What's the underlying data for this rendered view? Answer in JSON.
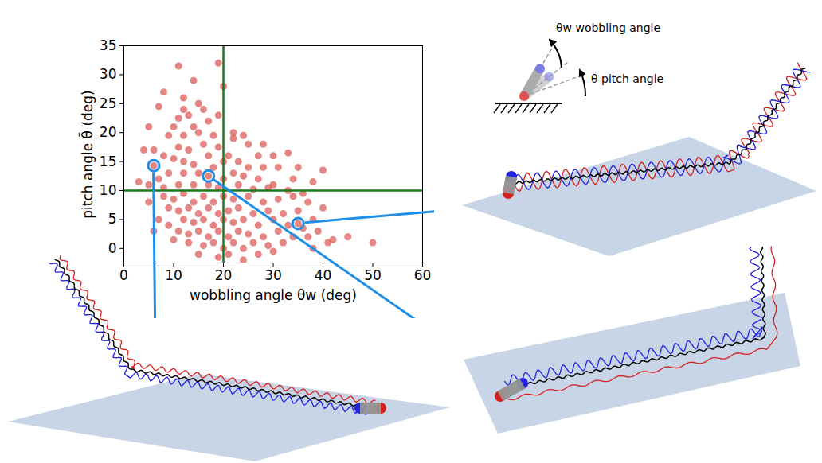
{
  "chart_data": {
    "type": "scatter",
    "x_label": "wobbling angle θw (deg)",
    "y_label": "pitch angle θ̄ (deg)",
    "color": "#d9534f",
    "xlim": [
      0,
      60
    ],
    "xticks": [
      0,
      10,
      20,
      30,
      40,
      50,
      60
    ],
    "ylim": [
      -2.5,
      35
    ],
    "yticks": [
      0,
      5,
      10,
      15,
      20,
      25,
      30,
      35
    ],
    "x": [
      8,
      11,
      14,
      19,
      20,
      12,
      15,
      12,
      16,
      11,
      13,
      17,
      19,
      14,
      10,
      5,
      7,
      9,
      12,
      15,
      18,
      22,
      24,
      22,
      25,
      28,
      30,
      33,
      27,
      21,
      19,
      16,
      13,
      11,
      8,
      6,
      4,
      10,
      12,
      14,
      17,
      18,
      20,
      23,
      25,
      28,
      31,
      35,
      40,
      38,
      34,
      30,
      27,
      24,
      22,
      20,
      15,
      12,
      9,
      7,
      5,
      3,
      8,
      11,
      14,
      17,
      19,
      23,
      26,
      29,
      33,
      36,
      6,
      17,
      35,
      5,
      8,
      10,
      12,
      14,
      16,
      18,
      20,
      22,
      25,
      28,
      31,
      34,
      37,
      40,
      9,
      11,
      13,
      15,
      17,
      19,
      21,
      23,
      26,
      29,
      32,
      35,
      38,
      12,
      14,
      16,
      18,
      20,
      22,
      24,
      27,
      30,
      33,
      36,
      39,
      42,
      45,
      50,
      11,
      13,
      15,
      17,
      19,
      21,
      23,
      25,
      28,
      31,
      34,
      37,
      41,
      13,
      16,
      18,
      20,
      22,
      24,
      26,
      29,
      32,
      38,
      15,
      19,
      21,
      24,
      27,
      30,
      7,
      9,
      6,
      10
    ],
    "y": [
      27,
      31.5,
      29,
      32,
      28,
      26,
      25,
      24,
      24,
      22.5,
      23,
      22,
      23,
      21,
      21,
      21,
      24.5,
      19.5,
      19.5,
      20,
      19.5,
      20,
      19.5,
      19,
      18,
      18,
      16,
      16.5,
      16,
      16,
      17.5,
      18,
      17,
      17.5,
      16,
      17,
      17,
      15.5,
      15,
      14.5,
      16,
      14,
      15,
      15,
      14,
      14,
      14,
      14,
      13.5,
      11.5,
      12,
      11,
      12,
      12.5,
      13,
      12,
      13,
      13,
      13,
      12,
      11,
      11.5,
      10.5,
      11,
      11,
      11,
      10.5,
      11,
      10.2,
      10.5,
      10,
      9.5,
      14.3,
      12.5,
      4.3,
      8,
      9,
      8.5,
      9.5,
      8,
      9,
      8,
      9,
      8.5,
      9,
      8,
      8.5,
      9,
      8,
      7,
      7,
      6.5,
      7,
      6,
      7,
      6,
      6.5,
      7,
      6,
      6.5,
      6,
      6.5,
      5,
      5,
      4.5,
      5,
      4,
      5,
      4.5,
      5,
      4,
      5,
      4,
      3.5,
      3,
      1.5,
      2,
      1,
      3,
      2.5,
      3,
      2,
      3,
      2,
      3,
      2.5,
      2,
      3,
      2,
      2,
      1,
      1,
      0.5,
      1,
      0,
      1,
      0,
      1,
      0.5,
      1,
      0,
      -1,
      -1.5,
      -1,
      -2,
      -1,
      -0.5,
      5,
      4,
      3,
      1.5
    ],
    "reference_lines": {
      "x": 20,
      "y": 10,
      "color": "#1a7a1a"
    },
    "highlighted_points": {
      "x": [
        6,
        17,
        35
      ],
      "y": [
        14.3,
        12.5,
        4.3
      ],
      "color": "#1e8fe8"
    },
    "diagram": {
      "wobbling_label": "θw wobbling angle",
      "pitch_label": "θ̄ pitch angle"
    }
  }
}
